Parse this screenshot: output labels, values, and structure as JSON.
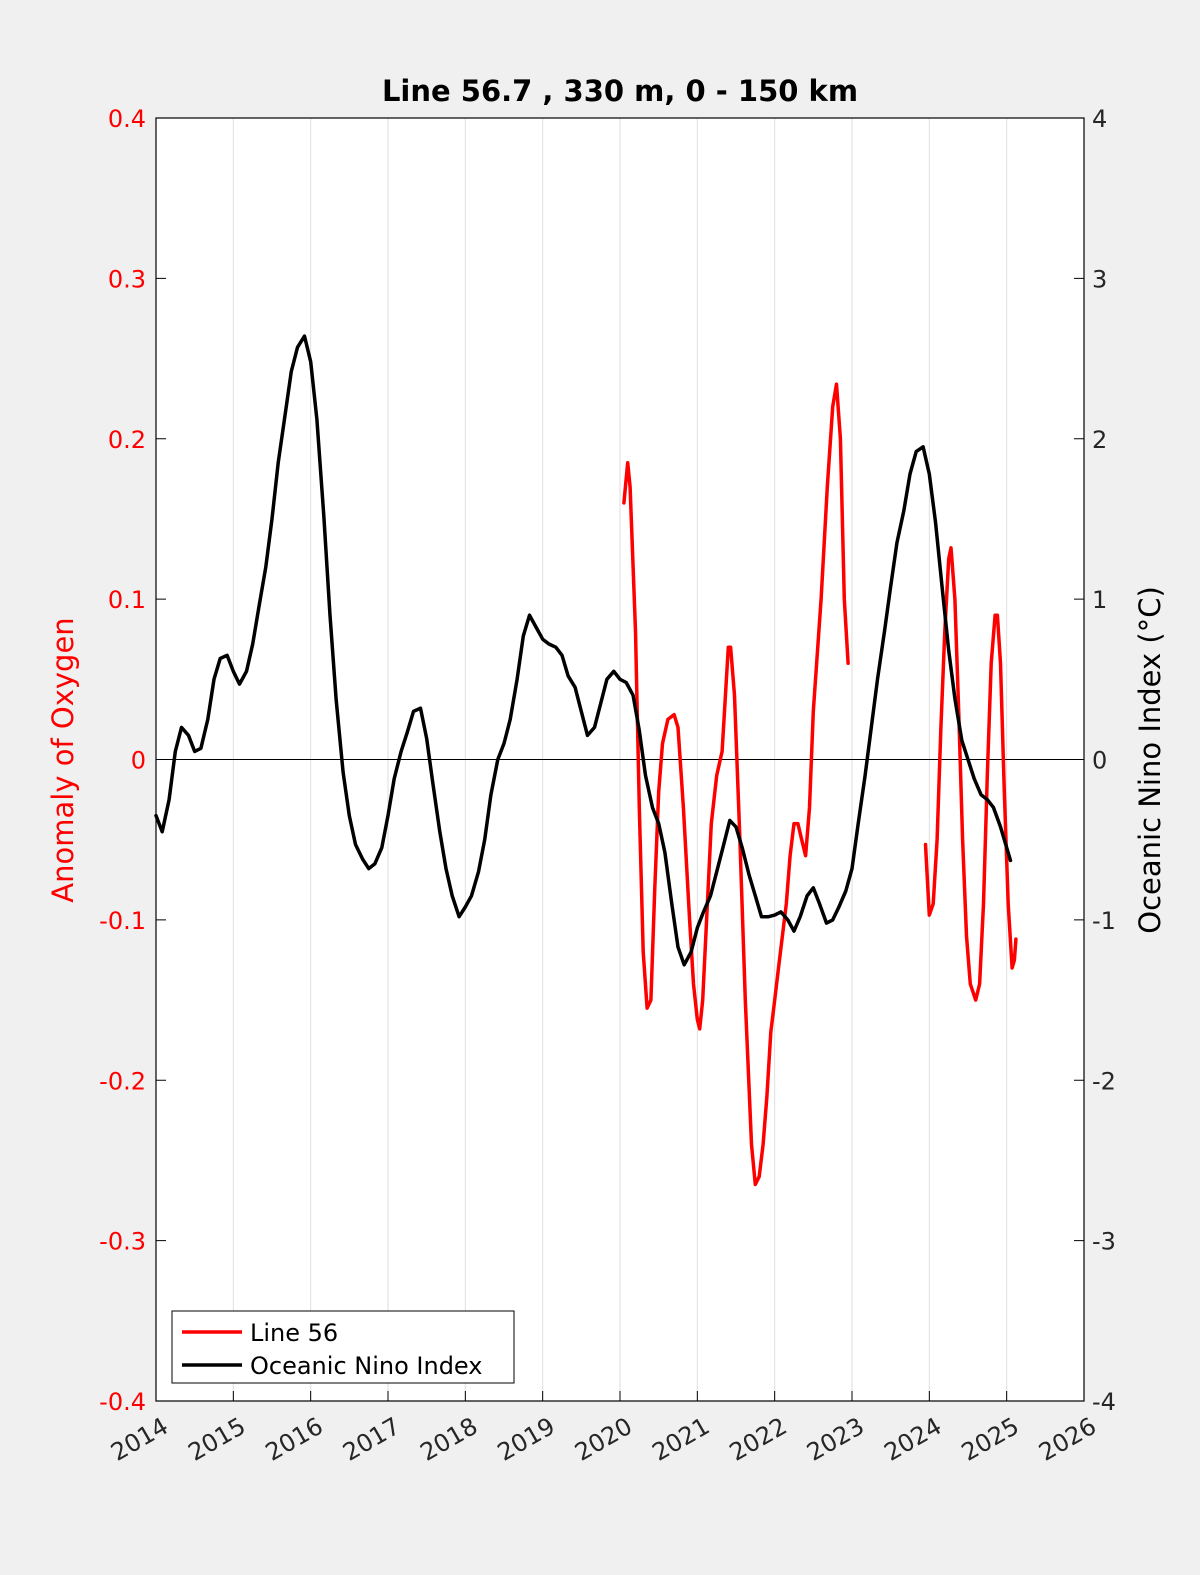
{
  "chart_data": {
    "type": "line",
    "title": "Line 56.7 , 330 m, 0 - 150 km",
    "xlim": [
      2014,
      2026
    ],
    "x_ticks": [
      "2014",
      "2015",
      "2016",
      "2017",
      "2018",
      "2019",
      "2020",
      "2021",
      "2022",
      "2023",
      "2024",
      "2025",
      "2026"
    ],
    "y_left": {
      "label": "Anomaly of Oxygen",
      "ylim": [
        -0.4,
        0.4
      ],
      "ticks": [
        "-0.4",
        "-0.3",
        "-0.2",
        "-0.1",
        "0",
        "0.1",
        "0.2",
        "0.3",
        "0.4"
      ],
      "color": "#ff0000"
    },
    "y_right": {
      "label": "Oceanic Nino Index (°C)",
      "ylim": [
        -4,
        4
      ],
      "ticks": [
        "-4",
        "-3",
        "-2",
        "-1",
        "0",
        "1",
        "2",
        "3",
        "4"
      ],
      "color": "#000000"
    },
    "grid": "vertical",
    "legend_position": "bottom-left",
    "series": [
      {
        "name": "Line 56",
        "axis": "left",
        "color": "#ff0000",
        "segments": [
          [
            [
              2020.05,
              0.16
            ],
            [
              2020.1,
              0.185
            ],
            [
              2020.13,
              0.17
            ],
            [
              2020.2,
              0.08
            ],
            [
              2020.25,
              -0.03
            ],
            [
              2020.3,
              -0.12
            ],
            [
              2020.35,
              -0.155
            ],
            [
              2020.4,
              -0.15
            ],
            [
              2020.45,
              -0.08
            ],
            [
              2020.5,
              -0.02
            ],
            [
              2020.55,
              0.01
            ],
            [
              2020.62,
              0.025
            ],
            [
              2020.7,
              0.028
            ],
            [
              2020.75,
              0.02
            ],
            [
              2020.82,
              -0.03
            ],
            [
              2020.9,
              -0.1
            ],
            [
              2020.95,
              -0.14
            ],
            [
              2021.0,
              -0.162
            ],
            [
              2021.03,
              -0.168
            ],
            [
              2021.07,
              -0.15
            ],
            [
              2021.12,
              -0.1
            ],
            [
              2021.18,
              -0.04
            ],
            [
              2021.25,
              -0.01
            ],
            [
              2021.32,
              0.005
            ],
            [
              2021.4,
              0.07
            ],
            [
              2021.43,
              0.07
            ],
            [
              2021.48,
              0.04
            ],
            [
              2021.55,
              -0.05
            ],
            [
              2021.62,
              -0.15
            ],
            [
              2021.7,
              -0.24
            ],
            [
              2021.75,
              -0.265
            ],
            [
              2021.8,
              -0.26
            ],
            [
              2021.85,
              -0.24
            ],
            [
              2021.9,
              -0.21
            ],
            [
              2021.95,
              -0.17
            ],
            [
              2022.0,
              -0.15
            ],
            [
              2022.05,
              -0.13
            ],
            [
              2022.1,
              -0.11
            ],
            [
              2022.15,
              -0.09
            ],
            [
              2022.2,
              -0.06
            ],
            [
              2022.25,
              -0.04
            ],
            [
              2022.3,
              -0.04
            ],
            [
              2022.35,
              -0.05
            ],
            [
              2022.4,
              -0.06
            ],
            [
              2022.45,
              -0.03
            ],
            [
              2022.5,
              0.03
            ],
            [
              2022.6,
              0.1
            ],
            [
              2022.68,
              0.17
            ],
            [
              2022.75,
              0.22
            ],
            [
              2022.8,
              0.234
            ],
            [
              2022.85,
              0.2
            ],
            [
              2022.9,
              0.1
            ],
            [
              2022.95,
              0.06
            ]
          ],
          [
            [
              2023.95,
              -0.053
            ],
            [
              2024.0,
              -0.097
            ],
            [
              2024.05,
              -0.09
            ],
            [
              2024.1,
              -0.05
            ],
            [
              2024.15,
              0.02
            ],
            [
              2024.2,
              0.08
            ],
            [
              2024.25,
              0.125
            ],
            [
              2024.28,
              0.132
            ],
            [
              2024.33,
              0.1
            ],
            [
              2024.38,
              0.03
            ],
            [
              2024.43,
              -0.05
            ],
            [
              2024.48,
              -0.11
            ],
            [
              2024.53,
              -0.14
            ],
            [
              2024.6,
              -0.15
            ],
            [
              2024.65,
              -0.14
            ],
            [
              2024.7,
              -0.09
            ],
            [
              2024.75,
              -0.01
            ],
            [
              2024.8,
              0.06
            ],
            [
              2024.85,
              0.09
            ],
            [
              2024.88,
              0.09
            ],
            [
              2024.92,
              0.06
            ],
            [
              2024.97,
              -0.02
            ],
            [
              2025.02,
              -0.09
            ],
            [
              2025.07,
              -0.13
            ],
            [
              2025.1,
              -0.125
            ],
            [
              2025.12,
              -0.112
            ]
          ]
        ]
      },
      {
        "name": "Oceanic Nino Index",
        "axis": "right",
        "color": "#000000",
        "segments": [
          [
            [
              2014.0,
              -0.35
            ],
            [
              2014.08,
              -0.45
            ],
            [
              2014.17,
              -0.25
            ],
            [
              2014.25,
              0.05
            ],
            [
              2014.33,
              0.2
            ],
            [
              2014.42,
              0.15
            ],
            [
              2014.5,
              0.05
            ],
            [
              2014.58,
              0.07
            ],
            [
              2014.67,
              0.25
            ],
            [
              2014.75,
              0.5
            ],
            [
              2014.83,
              0.63
            ],
            [
              2014.92,
              0.65
            ],
            [
              2015.0,
              0.55
            ],
            [
              2015.08,
              0.47
            ],
            [
              2015.17,
              0.55
            ],
            [
              2015.25,
              0.72
            ],
            [
              2015.33,
              0.95
            ],
            [
              2015.42,
              1.2
            ],
            [
              2015.5,
              1.5
            ],
            [
              2015.58,
              1.85
            ],
            [
              2015.67,
              2.15
            ],
            [
              2015.75,
              2.42
            ],
            [
              2015.83,
              2.57
            ],
            [
              2015.92,
              2.64
            ],
            [
              2016.0,
              2.48
            ],
            [
              2016.08,
              2.12
            ],
            [
              2016.17,
              1.52
            ],
            [
              2016.25,
              0.9
            ],
            [
              2016.33,
              0.37
            ],
            [
              2016.42,
              -0.08
            ],
            [
              2016.5,
              -0.35
            ],
            [
              2016.58,
              -0.53
            ],
            [
              2016.67,
              -0.62
            ],
            [
              2016.75,
              -0.68
            ],
            [
              2016.83,
              -0.65
            ],
            [
              2016.92,
              -0.55
            ],
            [
              2017.0,
              -0.35
            ],
            [
              2017.08,
              -0.12
            ],
            [
              2017.17,
              0.05
            ],
            [
              2017.25,
              0.17
            ],
            [
              2017.33,
              0.3
            ],
            [
              2017.42,
              0.32
            ],
            [
              2017.5,
              0.13
            ],
            [
              2017.58,
              -0.15
            ],
            [
              2017.67,
              -0.45
            ],
            [
              2017.75,
              -0.68
            ],
            [
              2017.83,
              -0.85
            ],
            [
              2017.92,
              -0.98
            ],
            [
              2018.0,
              -0.92
            ],
            [
              2018.08,
              -0.85
            ],
            [
              2018.17,
              -0.7
            ],
            [
              2018.25,
              -0.5
            ],
            [
              2018.33,
              -0.22
            ],
            [
              2018.42,
              0.0
            ],
            [
              2018.5,
              0.1
            ],
            [
              2018.58,
              0.25
            ],
            [
              2018.67,
              0.5
            ],
            [
              2018.75,
              0.77
            ],
            [
              2018.83,
              0.9
            ],
            [
              2018.92,
              0.82
            ],
            [
              2019.0,
              0.75
            ],
            [
              2019.08,
              0.72
            ],
            [
              2019.17,
              0.7
            ],
            [
              2019.25,
              0.65
            ],
            [
              2019.33,
              0.52
            ],
            [
              2019.42,
              0.45
            ],
            [
              2019.5,
              0.3
            ],
            [
              2019.58,
              0.15
            ],
            [
              2019.67,
              0.2
            ],
            [
              2019.75,
              0.35
            ],
            [
              2019.83,
              0.5
            ],
            [
              2019.92,
              0.55
            ],
            [
              2020.0,
              0.5
            ],
            [
              2020.08,
              0.48
            ],
            [
              2020.17,
              0.4
            ],
            [
              2020.25,
              0.18
            ],
            [
              2020.33,
              -0.1
            ],
            [
              2020.42,
              -0.3
            ],
            [
              2020.5,
              -0.4
            ],
            [
              2020.58,
              -0.58
            ],
            [
              2020.67,
              -0.9
            ],
            [
              2020.75,
              -1.17
            ],
            [
              2020.83,
              -1.28
            ],
            [
              2020.92,
              -1.2
            ],
            [
              2021.0,
              -1.05
            ],
            [
              2021.08,
              -0.95
            ],
            [
              2021.17,
              -0.85
            ],
            [
              2021.25,
              -0.7
            ],
            [
              2021.33,
              -0.55
            ],
            [
              2021.42,
              -0.38
            ],
            [
              2021.5,
              -0.42
            ],
            [
              2021.58,
              -0.55
            ],
            [
              2021.67,
              -0.72
            ],
            [
              2021.75,
              -0.85
            ],
            [
              2021.83,
              -0.98
            ],
            [
              2021.92,
              -0.98
            ],
            [
              2022.0,
              -0.97
            ],
            [
              2022.08,
              -0.95
            ],
            [
              2022.17,
              -1.0
            ],
            [
              2022.25,
              -1.07
            ],
            [
              2022.33,
              -0.98
            ],
            [
              2022.42,
              -0.85
            ],
            [
              2022.5,
              -0.8
            ],
            [
              2022.58,
              -0.9
            ],
            [
              2022.67,
              -1.02
            ],
            [
              2022.75,
              -1.0
            ],
            [
              2022.83,
              -0.92
            ],
            [
              2022.92,
              -0.82
            ],
            [
              2023.0,
              -0.68
            ],
            [
              2023.08,
              -0.4
            ],
            [
              2023.17,
              -0.1
            ],
            [
              2023.25,
              0.2
            ],
            [
              2023.33,
              0.5
            ],
            [
              2023.42,
              0.8
            ],
            [
              2023.5,
              1.08
            ],
            [
              2023.58,
              1.35
            ],
            [
              2023.67,
              1.55
            ],
            [
              2023.75,
              1.78
            ],
            [
              2023.83,
              1.92
            ],
            [
              2023.92,
              1.95
            ],
            [
              2024.0,
              1.78
            ],
            [
              2024.08,
              1.48
            ],
            [
              2024.17,
              1.05
            ],
            [
              2024.25,
              0.68
            ],
            [
              2024.33,
              0.38
            ],
            [
              2024.42,
              0.12
            ],
            [
              2024.5,
              0.0
            ],
            [
              2024.58,
              -0.12
            ],
            [
              2024.67,
              -0.22
            ],
            [
              2024.75,
              -0.25
            ],
            [
              2024.83,
              -0.3
            ],
            [
              2024.92,
              -0.42
            ],
            [
              2025.0,
              -0.55
            ],
            [
              2025.05,
              -0.63
            ]
          ]
        ]
      }
    ]
  }
}
